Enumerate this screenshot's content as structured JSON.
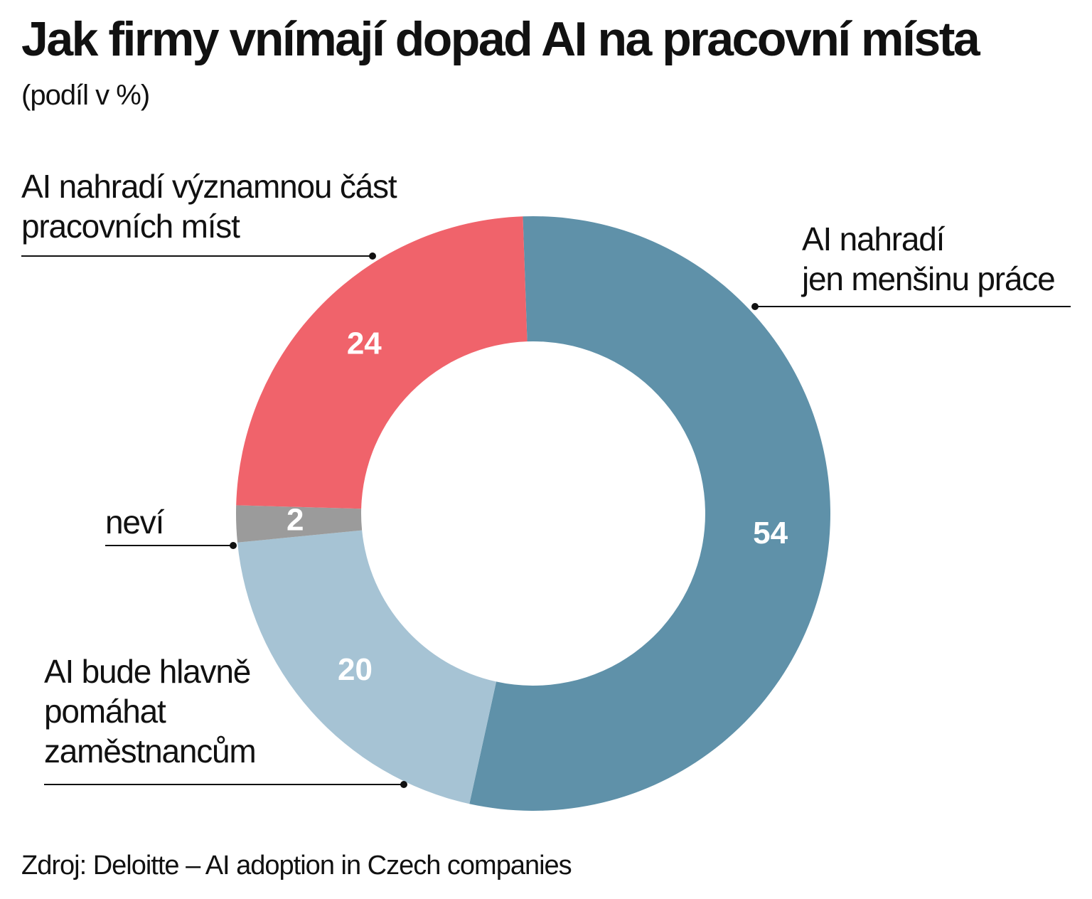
{
  "title": "Jak firmy vnímají dopad AI na pracovní místa",
  "subtitle": "(podíl v %)",
  "source": "Zdroj: Deloitte – AI adoption in Czech companies",
  "chart_data": {
    "type": "pie",
    "donut": true,
    "unit": "%",
    "legend": "callouts",
    "slices": [
      {
        "label": "AI nahradí jen menšinu práce",
        "label_lines": [
          "AI nahradí",
          "jen menšinu práce"
        ],
        "value": 54,
        "value_label": "54",
        "color": "#5f91a9"
      },
      {
        "label": "AI bude hlavně pomáhat zaměstnancům",
        "label_lines": [
          "AI bude hlavně",
          "pomáhat",
          "zaměstnancům"
        ],
        "value": 20,
        "value_label": "20",
        "color": "#a6c3d4"
      },
      {
        "label": "neví",
        "label_lines": [
          "neví"
        ],
        "value": 2,
        "value_label": "2",
        "color": "#9b9b9b"
      },
      {
        "label": "AI nahradí významnou část pracovních míst",
        "label_lines": [
          "AI nahradí významnou část",
          "pracovních míst"
        ],
        "value": 24,
        "value_label": "24",
        "color": "#f0636b"
      }
    ]
  }
}
